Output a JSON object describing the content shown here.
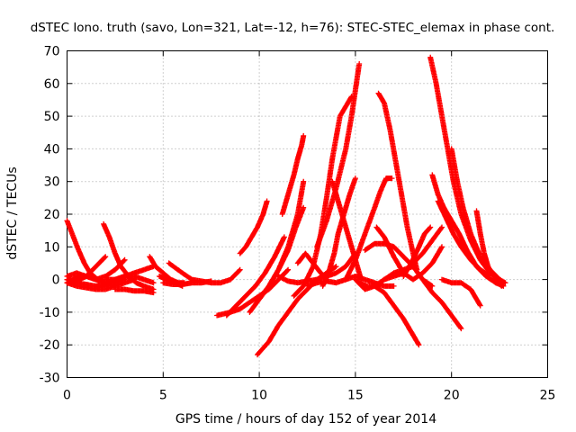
{
  "chart_data": {
    "type": "scatter",
    "title": "dSTEC Iono. truth (savo, Lon=321, Lat=-12, h=76): STEC-STEC_elemax in phase cont.",
    "xlabel": "GPS time / hours of day 152 of year 2014",
    "ylabel": "dSTEC  / TECUs",
    "xlim": [
      0,
      25
    ],
    "ylim": [
      -30,
      70
    ],
    "xticks": [
      0,
      5,
      10,
      15,
      20,
      25
    ],
    "yticks": [
      -30,
      -20,
      -10,
      0,
      10,
      20,
      30,
      40,
      50,
      60,
      70
    ],
    "grid": true,
    "marker": "+",
    "color": "#ff0000",
    "series": [
      {
        "x": [
          0.0,
          0.2,
          0.4,
          0.6,
          0.9,
          1.2,
          1.6,
          2.0
        ],
        "y": [
          18,
          15,
          12,
          9,
          5,
          2,
          0,
          -1
        ]
      },
      {
        "x": [
          0.0,
          0.5,
          1.0,
          1.5,
          2.0,
          2.5
        ],
        "y": [
          0,
          -1,
          -1.5,
          -2,
          -2,
          -1.5
        ]
      },
      {
        "x": [
          0.0,
          0.3,
          0.6,
          1.0,
          1.5,
          2.0,
          2.5,
          3.0
        ],
        "y": [
          -1,
          0,
          1,
          1,
          0,
          -1,
          -1,
          0
        ]
      },
      {
        "x": [
          0.0,
          0.5,
          1.0,
          1.5,
          2.0
        ],
        "y": [
          0,
          -0.5,
          1,
          4,
          7
        ]
      },
      {
        "x": [
          0.0,
          0.5,
          1.0,
          1.5,
          2.0,
          2.5,
          3.0,
          3.5
        ],
        "y": [
          -1,
          -2,
          -2.5,
          -3,
          -3,
          -2,
          -1,
          0
        ]
      },
      {
        "x": [
          0.0,
          0.5,
          1.0,
          1.5,
          2.0,
          2.5,
          3.0
        ],
        "y": [
          1,
          2,
          1,
          0,
          1,
          3,
          6
        ]
      },
      {
        "x": [
          1.9,
          2.2,
          2.5,
          2.8,
          3.2,
          3.6,
          4.0,
          4.5
        ],
        "y": [
          17,
          13,
          8,
          4,
          1,
          -1,
          -2,
          -3
        ]
      },
      {
        "x": [
          1.5,
          2.0,
          2.5,
          3.0,
          3.5,
          4.0,
          4.5
        ],
        "y": [
          -2,
          -1.5,
          0,
          1,
          1,
          0,
          -1
        ]
      },
      {
        "x": [
          2.0,
          2.5,
          3.0,
          3.5,
          4.0,
          4.5
        ],
        "y": [
          0,
          0,
          1,
          2,
          3,
          4
        ]
      },
      {
        "x": [
          2.5,
          3.0,
          3.5,
          4.0,
          4.5
        ],
        "y": [
          -3,
          -3,
          -3.5,
          -3.5,
          -4
        ]
      },
      {
        "x": [
          4.3,
          4.6,
          5.0,
          5.4,
          5.8,
          6.1
        ],
        "y": [
          7,
          4,
          2,
          0,
          -1,
          -1
        ]
      },
      {
        "x": [
          5.3,
          6.0,
          6.5,
          7.0,
          7.5,
          8.0,
          8.5,
          9.0
        ],
        "y": [
          5,
          2,
          0,
          -0.5,
          -1,
          -1,
          0,
          3
        ]
      },
      {
        "x": [
          4.8,
          5.2,
          5.6,
          6.0
        ],
        "y": [
          1,
          0,
          -1,
          -2
        ]
      },
      {
        "x": [
          5.0,
          5.5,
          6.0,
          6.5,
          7.0,
          7.5
        ],
        "y": [
          -1,
          -1.5,
          -1.5,
          -1,
          -1,
          -0.5
        ]
      },
      {
        "x": [
          9.0,
          9.3,
          9.6,
          9.9,
          10.2,
          10.4
        ],
        "y": [
          8,
          10,
          13,
          16,
          20,
          24
        ]
      },
      {
        "x": [
          7.8,
          8.5,
          9.0,
          9.5,
          10.0,
          10.5,
          11.0,
          11.5
        ],
        "y": [
          -11,
          -10,
          -9,
          -7,
          -5,
          -3,
          0,
          3
        ]
      },
      {
        "x": [
          8.3,
          8.8,
          9.3,
          9.8,
          10.3,
          10.8,
          11.3
        ],
        "y": [
          -11,
          -8,
          -5,
          -2,
          2,
          7,
          13
        ]
      },
      {
        "x": [
          9.5,
          10.0,
          10.5,
          11.0,
          11.5,
          12.0,
          12.3
        ],
        "y": [
          -10,
          -6,
          -2,
          3,
          10,
          20,
          30
        ]
      },
      {
        "x": [
          10.0,
          10.5,
          11.0,
          11.5,
          11.9,
          12.3
        ],
        "y": [
          -6,
          -2,
          3,
          9,
          16,
          22
        ]
      },
      {
        "x": [
          11.2,
          11.5,
          11.8,
          12.0,
          12.2,
          12.3
        ],
        "y": [
          20,
          26,
          32,
          37,
          41,
          44
        ]
      },
      {
        "x": [
          9.9,
          10.5,
          11.0,
          11.5,
          12.0,
          12.5,
          13.0,
          13.5,
          14.0
        ],
        "y": [
          -23,
          -19,
          -14,
          -10,
          -6,
          -3,
          0,
          2,
          4
        ]
      },
      {
        "x": [
          11.8,
          12.3,
          12.8,
          13.2,
          13.5,
          13.8,
          14.2,
          14.8
        ],
        "y": [
          -5,
          -2,
          4,
          14,
          25,
          37,
          50,
          56
        ]
      },
      {
        "x": [
          11.0,
          11.5,
          12.0,
          12.5,
          13.0,
          13.5,
          14.0,
          14.5,
          15.0
        ],
        "y": [
          1,
          -0.5,
          -1,
          -0.5,
          0,
          1,
          2,
          4,
          8
        ]
      },
      {
        "x": [
          12.0,
          12.4,
          12.8,
          13.2,
          13.5
        ],
        "y": [
          5,
          8,
          5,
          2,
          0
        ]
      },
      {
        "x": [
          12.5,
          13.0,
          13.5,
          14.0,
          14.5,
          15.0,
          15.5,
          16.0,
          16.5,
          17.0
        ],
        "y": [
          -2,
          -1,
          -0.5,
          -1,
          0,
          1,
          0,
          -1,
          -2,
          -2
        ]
      },
      {
        "x": [
          13.0,
          13.5,
          14.0,
          14.5,
          14.8,
          15.0,
          15.2
        ],
        "y": [
          10,
          18,
          28,
          40,
          50,
          58,
          66
        ]
      },
      {
        "x": [
          13.3,
          13.6,
          13.9,
          14.1,
          14.4,
          14.7,
          15.0
        ],
        "y": [
          -2,
          2,
          8,
          14,
          20,
          26,
          31
        ]
      },
      {
        "x": [
          13.8,
          14.1,
          14.4,
          14.7,
          15.0,
          15.3
        ],
        "y": [
          30,
          24,
          18,
          12,
          6,
          0
        ]
      },
      {
        "x": [
          14.5,
          15.0,
          15.5,
          16.0,
          16.3,
          16.6,
          16.9
        ],
        "y": [
          0,
          6,
          14,
          22,
          27,
          31,
          31
        ]
      },
      {
        "x": [
          15.0,
          15.5,
          16.0,
          16.5,
          17.0,
          17.5,
          18.0
        ],
        "y": [
          0,
          -3,
          -2,
          0,
          2,
          3,
          4
        ]
      },
      {
        "x": [
          15.5,
          16.0,
          16.5,
          17.0,
          17.5,
          18.0,
          18.5,
          19.0
        ],
        "y": [
          9,
          11,
          11,
          10,
          7,
          4,
          0,
          -2
        ]
      },
      {
        "x": [
          16.2,
          16.5,
          16.8,
          17.1,
          17.4,
          17.7,
          18.0,
          18.2
        ],
        "y": [
          57,
          54,
          46,
          36,
          26,
          16,
          8,
          3
        ]
      },
      {
        "x": [
          16.1,
          16.5,
          17.0,
          17.5,
          18.0,
          18.5,
          19.0,
          19.5
        ],
        "y": [
          16,
          13,
          7,
          2,
          0,
          2,
          5,
          10
        ]
      },
      {
        "x": [
          15.2,
          15.6,
          16.0,
          16.5,
          17.0,
          17.5,
          18.0,
          18.3
        ],
        "y": [
          -1,
          -2,
          -2,
          -4,
          -8,
          -12,
          -17,
          -20
        ]
      },
      {
        "x": [
          16.5,
          17.0,
          17.5,
          18.0,
          18.5,
          19.0,
          19.5
        ],
        "y": [
          0,
          1,
          2,
          5,
          8,
          12,
          16
        ]
      },
      {
        "x": [
          17.5,
          17.9,
          18.3,
          18.6,
          18.9
        ],
        "y": [
          1,
          5,
          10,
          14,
          16
        ]
      },
      {
        "x": [
          18.5,
          19.0,
          19.5,
          20.0,
          20.5
        ],
        "y": [
          0,
          -4,
          -7,
          -11,
          -15
        ]
      },
      {
        "x": [
          18.9,
          19.2,
          19.5,
          19.8,
          20.1,
          20.5,
          21.0,
          21.5,
          22.0,
          22.5,
          22.8
        ],
        "y": [
          68,
          60,
          50,
          40,
          30,
          20,
          12,
          6,
          2,
          0,
          -1
        ]
      },
      {
        "x": [
          19.0,
          19.3,
          19.6,
          20.0,
          20.4,
          20.8,
          21.3,
          21.8,
          22.3,
          22.7
        ],
        "y": [
          32,
          26,
          22,
          18,
          14,
          9,
          4,
          1,
          -1,
          -2
        ]
      },
      {
        "x": [
          20.0,
          20.3,
          20.6,
          21.0,
          21.5,
          22.0,
          22.5
        ],
        "y": [
          40,
          30,
          22,
          14,
          7,
          3,
          0
        ]
      },
      {
        "x": [
          19.3,
          19.7,
          20.1,
          20.5,
          21.0,
          21.5,
          22.0
        ],
        "y": [
          24,
          19,
          14,
          10,
          6,
          3,
          1
        ]
      },
      {
        "x": [
          21.3,
          21.5,
          21.7,
          21.9,
          22.2,
          22.6
        ],
        "y": [
          21,
          14,
          8,
          4,
          1,
          -2
        ]
      },
      {
        "x": [
          19.5,
          20.0,
          20.5,
          21.0,
          21.5
        ],
        "y": [
          0,
          -1,
          -1,
          -3,
          -8
        ]
      }
    ]
  }
}
